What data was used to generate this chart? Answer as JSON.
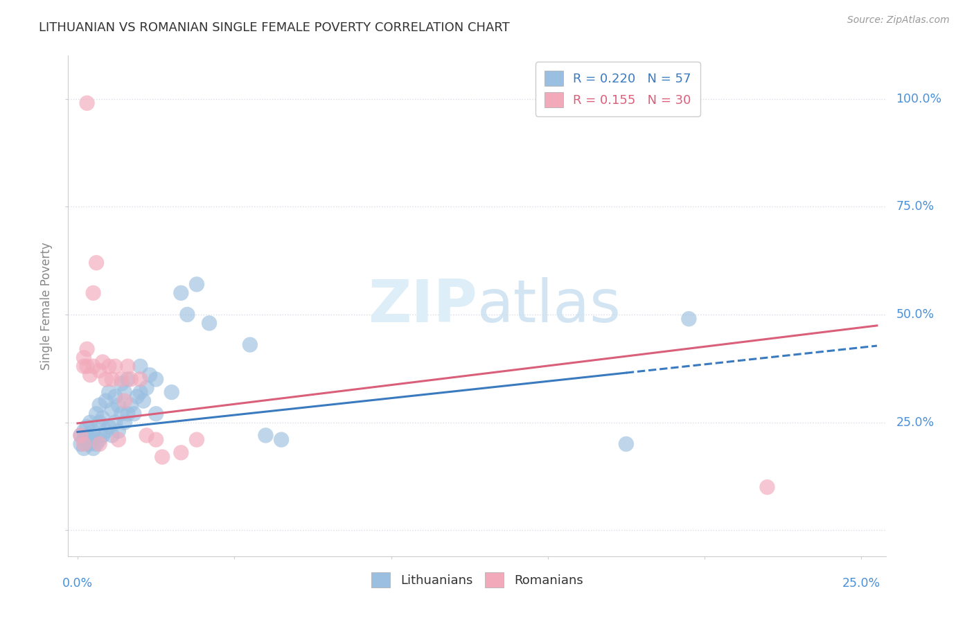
{
  "title": "LITHUANIAN VS ROMANIAN SINGLE FEMALE POVERTY CORRELATION CHART",
  "source": "Source: ZipAtlas.com",
  "ylabel": "Single Female Poverty",
  "lit_color": "#9bbfe0",
  "rom_color": "#f2aabb",
  "lit_line_color": "#3a7abf",
  "rom_line_color": "#d95f7a",
  "background_color": "#ffffff",
  "grid_color": "#d8dce8",
  "axis_label_color": "#4a90d9",
  "watermark_color": "#ddeef8",
  "lit_N": 57,
  "rom_N": 30,
  "xlim": [
    -0.003,
    0.258
  ],
  "ylim": [
    -0.06,
    1.1
  ],
  "lit_points": [
    [
      0.001,
      0.2
    ],
    [
      0.001,
      0.22
    ],
    [
      0.002,
      0.19
    ],
    [
      0.002,
      0.21
    ],
    [
      0.002,
      0.23
    ],
    [
      0.003,
      0.2
    ],
    [
      0.003,
      0.22
    ],
    [
      0.003,
      0.24
    ],
    [
      0.004,
      0.2
    ],
    [
      0.004,
      0.22
    ],
    [
      0.004,
      0.25
    ],
    [
      0.005,
      0.19
    ],
    [
      0.005,
      0.21
    ],
    [
      0.005,
      0.23
    ],
    [
      0.006,
      0.2
    ],
    [
      0.006,
      0.27
    ],
    [
      0.007,
      0.21
    ],
    [
      0.007,
      0.25
    ],
    [
      0.007,
      0.29
    ],
    [
      0.008,
      0.22
    ],
    [
      0.008,
      0.26
    ],
    [
      0.009,
      0.23
    ],
    [
      0.009,
      0.3
    ],
    [
      0.01,
      0.24
    ],
    [
      0.01,
      0.32
    ],
    [
      0.011,
      0.22
    ],
    [
      0.011,
      0.28
    ],
    [
      0.012,
      0.25
    ],
    [
      0.012,
      0.31
    ],
    [
      0.013,
      0.23
    ],
    [
      0.013,
      0.29
    ],
    [
      0.014,
      0.27
    ],
    [
      0.014,
      0.34
    ],
    [
      0.015,
      0.25
    ],
    [
      0.015,
      0.32
    ],
    [
      0.016,
      0.27
    ],
    [
      0.016,
      0.35
    ],
    [
      0.017,
      0.29
    ],
    [
      0.018,
      0.27
    ],
    [
      0.019,
      0.31
    ],
    [
      0.02,
      0.32
    ],
    [
      0.02,
      0.38
    ],
    [
      0.021,
      0.3
    ],
    [
      0.022,
      0.33
    ],
    [
      0.023,
      0.36
    ],
    [
      0.025,
      0.27
    ],
    [
      0.025,
      0.35
    ],
    [
      0.03,
      0.32
    ],
    [
      0.033,
      0.55
    ],
    [
      0.035,
      0.5
    ],
    [
      0.038,
      0.57
    ],
    [
      0.042,
      0.48
    ],
    [
      0.055,
      0.43
    ],
    [
      0.06,
      0.22
    ],
    [
      0.065,
      0.21
    ],
    [
      0.175,
      0.2
    ],
    [
      0.195,
      0.49
    ]
  ],
  "rom_points": [
    [
      0.001,
      0.22
    ],
    [
      0.002,
      0.2
    ],
    [
      0.002,
      0.38
    ],
    [
      0.002,
      0.4
    ],
    [
      0.003,
      0.38
    ],
    [
      0.003,
      0.42
    ],
    [
      0.003,
      0.99
    ],
    [
      0.004,
      0.36
    ],
    [
      0.005,
      0.38
    ],
    [
      0.005,
      0.55
    ],
    [
      0.006,
      0.62
    ],
    [
      0.007,
      0.2
    ],
    [
      0.007,
      0.37
    ],
    [
      0.008,
      0.39
    ],
    [
      0.009,
      0.35
    ],
    [
      0.01,
      0.38
    ],
    [
      0.011,
      0.35
    ],
    [
      0.012,
      0.38
    ],
    [
      0.013,
      0.21
    ],
    [
      0.014,
      0.35
    ],
    [
      0.015,
      0.3
    ],
    [
      0.016,
      0.38
    ],
    [
      0.017,
      0.35
    ],
    [
      0.02,
      0.35
    ],
    [
      0.022,
      0.22
    ],
    [
      0.025,
      0.21
    ],
    [
      0.027,
      0.17
    ],
    [
      0.033,
      0.18
    ],
    [
      0.038,
      0.21
    ],
    [
      0.22,
      0.1
    ]
  ]
}
